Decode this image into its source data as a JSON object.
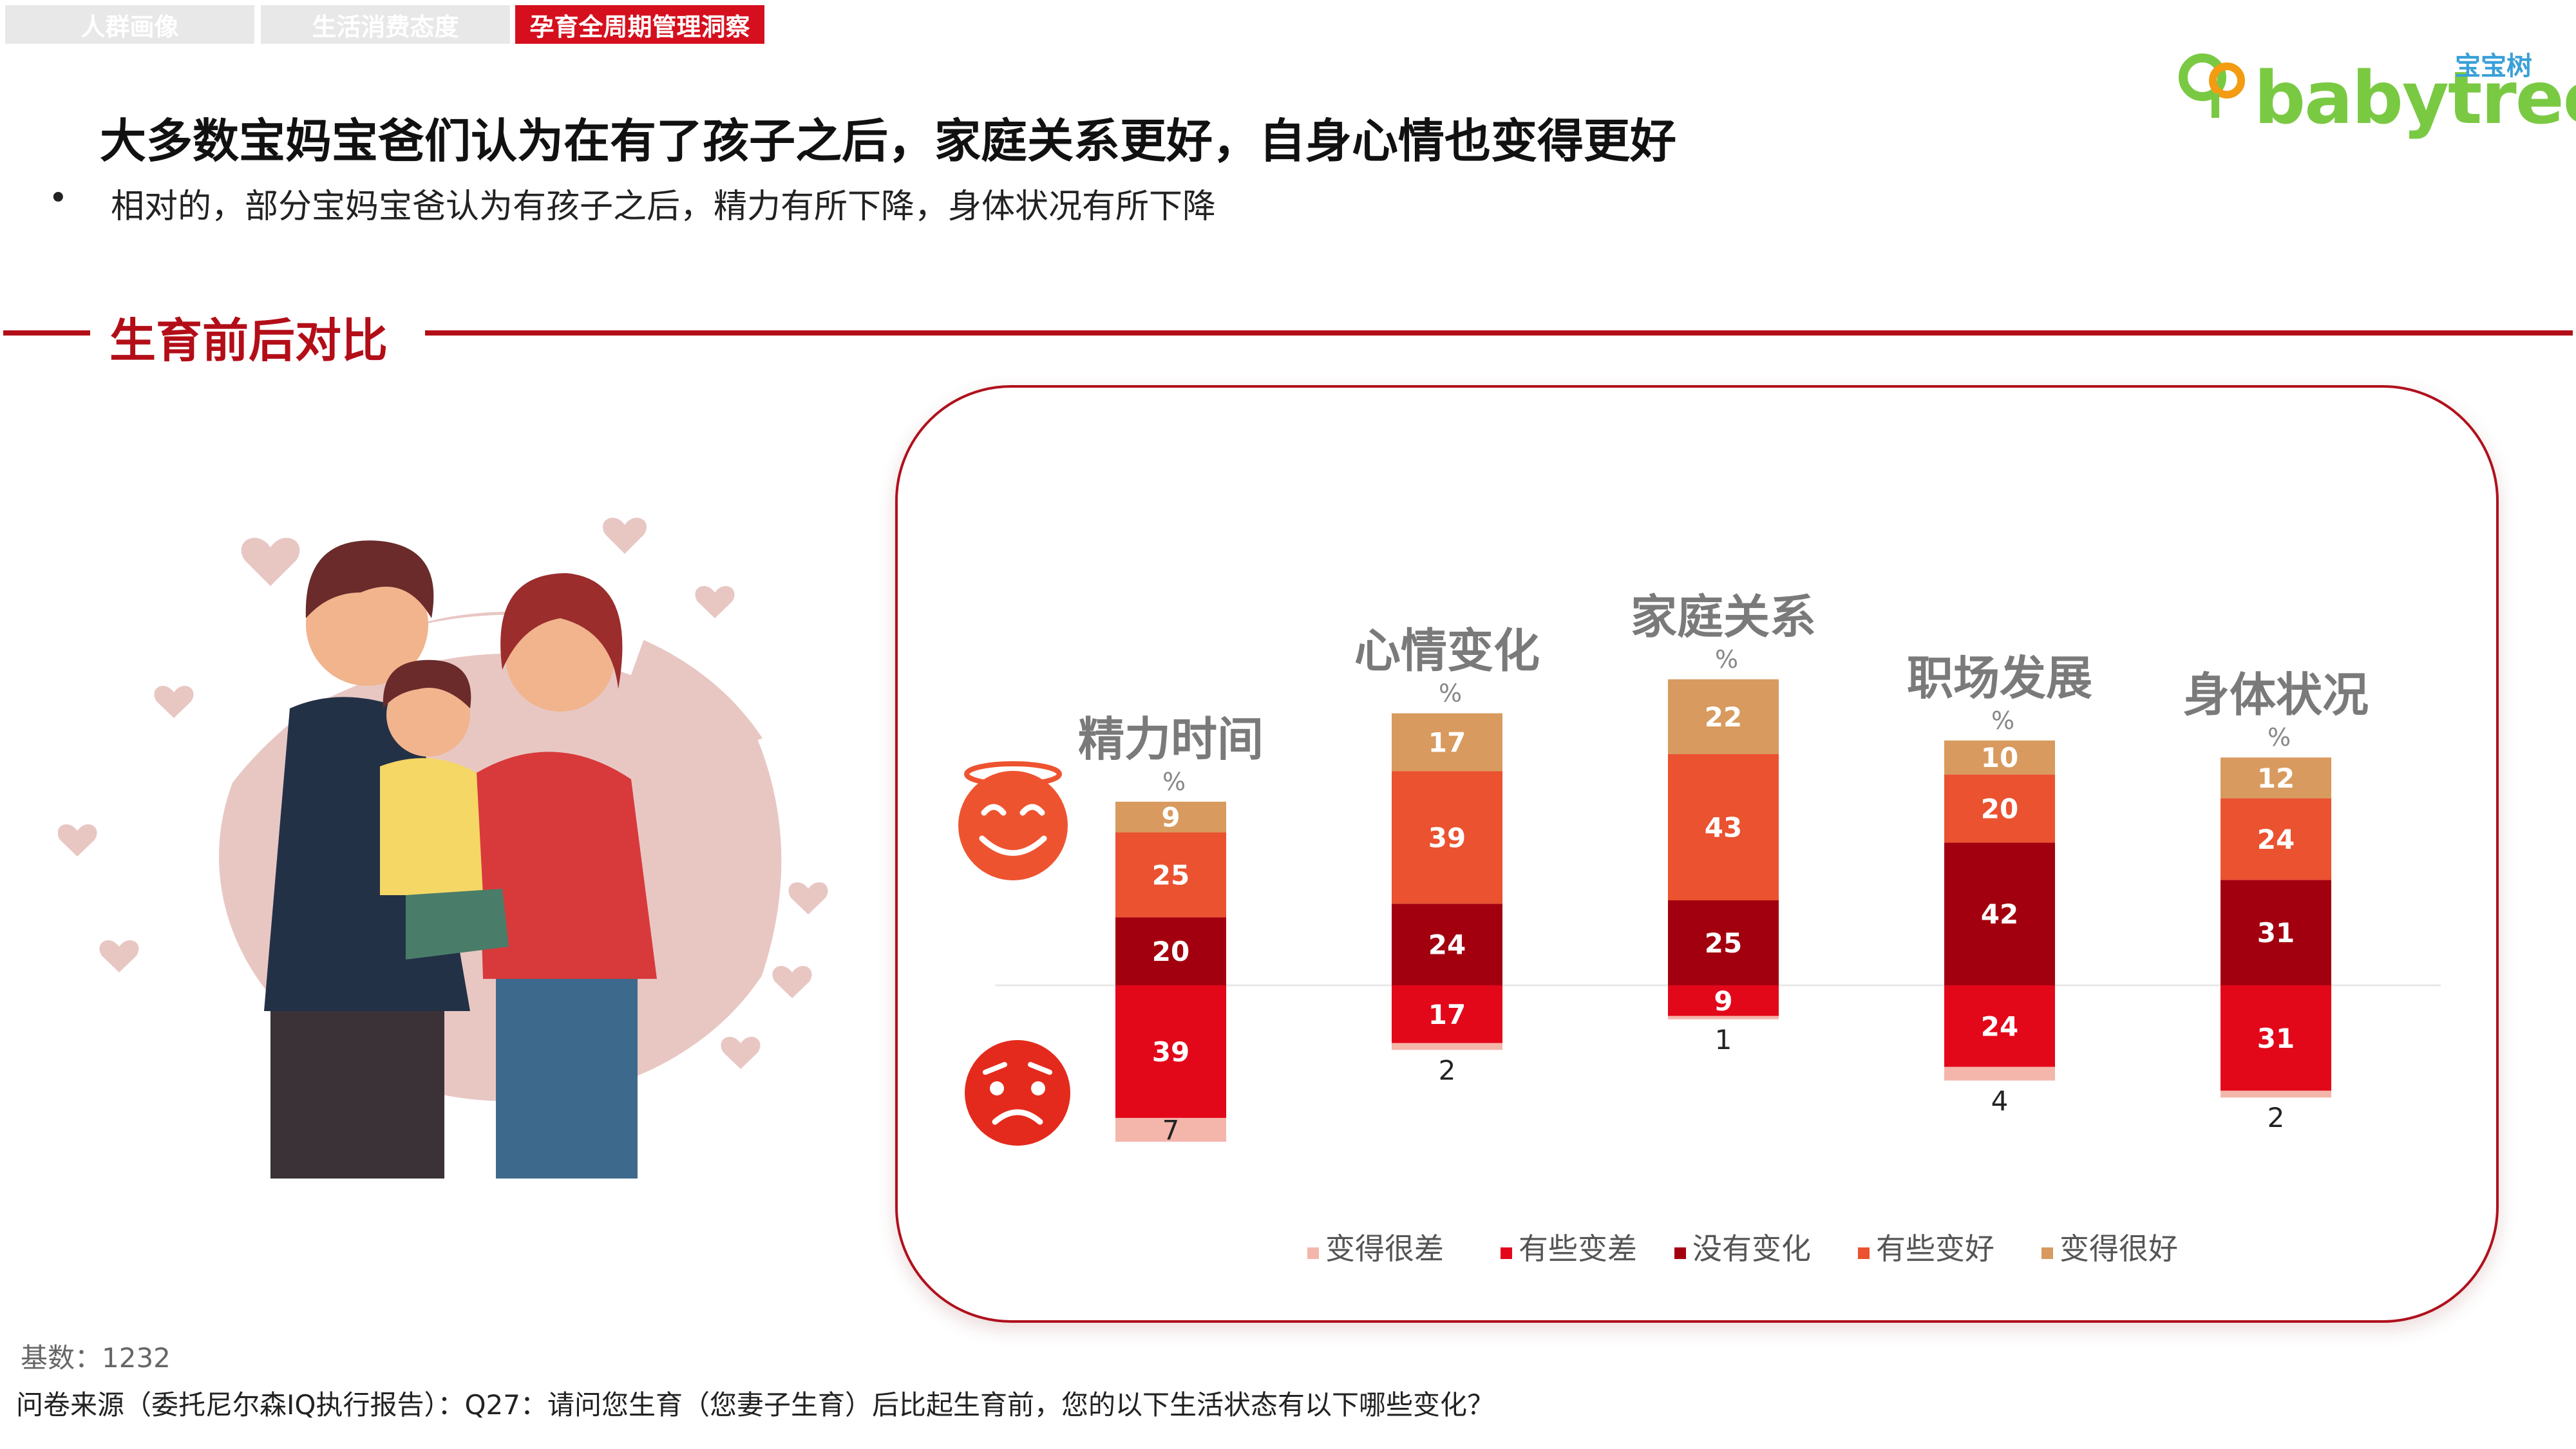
{
  "tabs": [
    {
      "label": "人群画像",
      "active": false
    },
    {
      "label": "生活消费态度",
      "active": false
    },
    {
      "label": "孕育全周期管理洞察",
      "active": true
    }
  ],
  "logo": {
    "text": "babytree",
    "cn": "宝宝树"
  },
  "header": {
    "title": "大多数宝妈宝爸们认为在有了孩子之后，家庭关系更好，自身心情也变得更好",
    "bullet": "•",
    "subtitle": "相对的，部分宝妈宝爸认为有孩子之后，精力有所下降，身体状况有所下降"
  },
  "section": {
    "title": "生育前后对比"
  },
  "colors": {
    "much_worse": "#f4b6ab",
    "somewhat_worse": "#e3071a",
    "no_change": "#a3000f",
    "somewhat_better": "#ea5230",
    "much_better": "#d89a5e",
    "brand_red": "#b30e18",
    "icon_red": "#e42a1c",
    "icon_orange": "#ee5330"
  },
  "icons": {
    "happy": "smiling-face-with-halo-icon",
    "sad": "worried-face-icon"
  },
  "chart_data": {
    "type": "bar",
    "stacked": "diverging",
    "unit_label": "%",
    "categories": [
      "精力时间",
      "心情变化",
      "家庭关系",
      "职场发展",
      "身体状况"
    ],
    "series": [
      {
        "name": "变得很差",
        "key": "much_worse",
        "direction": "down",
        "values": [
          7,
          2,
          1,
          4,
          2
        ]
      },
      {
        "name": "有些变差",
        "key": "somewhat_worse",
        "direction": "down",
        "values": [
          39,
          17,
          9,
          24,
          31
        ]
      },
      {
        "name": "没有变化",
        "key": "no_change",
        "direction": "up",
        "values": [
          20,
          24,
          25,
          42,
          31
        ]
      },
      {
        "name": "有些变好",
        "key": "somewhat_better",
        "direction": "up",
        "values": [
          25,
          39,
          43,
          20,
          24
        ]
      },
      {
        "name": "变得很好",
        "key": "much_better",
        "direction": "up",
        "values": [
          9,
          17,
          22,
          10,
          12
        ]
      }
    ],
    "legend_position": "bottom",
    "grid": false
  },
  "footer": {
    "base": "基数：1232",
    "source": "问卷来源（委托尼尔森IQ执行报告）：Q27：请问您生育（您妻子生育）后比起生育前，您的以下生活状态有以下哪些变化？"
  }
}
